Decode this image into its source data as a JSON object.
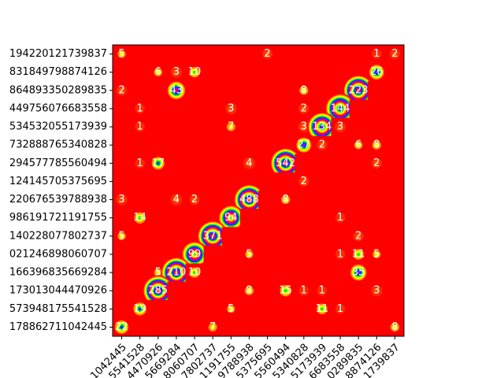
{
  "chart_data": {
    "type": "heatmap",
    "x_categories": [
      "1042445",
      "5541528",
      "4470926",
      "5669284",
      "8060707",
      "7802737",
      "1191755",
      "9788938",
      "5375695",
      "5560494",
      "5340828",
      "5173939",
      "6683558",
      "0289835",
      "8874126",
      "1739837"
    ],
    "y_categories": [
      "194220121739837",
      "831849798874126",
      "864893350289835",
      "449756076683558",
      "534532055173939",
      "732888765340828",
      "294577785560494",
      "124145705375695",
      "220676539788938",
      "986191721191755",
      "140228077802737",
      "021246898060707",
      "166396835669284",
      "173013044470926",
      "573948175541528",
      "178862711042445"
    ],
    "values": [
      [
        5,
        0,
        0,
        0,
        0,
        0,
        0,
        0,
        2,
        0,
        0,
        0,
        0,
        0,
        1,
        2
      ],
      [
        0,
        0,
        6,
        3,
        10,
        0,
        0,
        0,
        0,
        0,
        0,
        0,
        0,
        0,
        26,
        0
      ],
      [
        2,
        0,
        0,
        43,
        0,
        0,
        0,
        0,
        0,
        0,
        8,
        0,
        0,
        223,
        0,
        0
      ],
      [
        0,
        1,
        0,
        0,
        0,
        0,
        3,
        0,
        0,
        0,
        2,
        0,
        144,
        0,
        0,
        0
      ],
      [
        0,
        1,
        0,
        0,
        0,
        0,
        7,
        0,
        0,
        0,
        3,
        134,
        3,
        0,
        0,
        0
      ],
      [
        0,
        0,
        0,
        0,
        0,
        0,
        0,
        0,
        0,
        0,
        27,
        2,
        0,
        6,
        8,
        0
      ],
      [
        0,
        1,
        17,
        0,
        0,
        0,
        0,
        4,
        0,
        542,
        0,
        0,
        0,
        0,
        2,
        0
      ],
      [
        0,
        0,
        0,
        0,
        0,
        0,
        0,
        0,
        0,
        0,
        2,
        0,
        0,
        0,
        0,
        0
      ],
      [
        3,
        0,
        0,
        4,
        2,
        0,
        0,
        488,
        0,
        8,
        0,
        0,
        0,
        0,
        0,
        0
      ],
      [
        0,
        14,
        0,
        0,
        0,
        0,
        94,
        0,
        0,
        0,
        0,
        0,
        1,
        0,
        0,
        0
      ],
      [
        5,
        0,
        0,
        0,
        0,
        371,
        0,
        0,
        0,
        0,
        0,
        0,
        0,
        2,
        0,
        0
      ],
      [
        0,
        0,
        0,
        0,
        99,
        0,
        0,
        5,
        0,
        0,
        0,
        0,
        1,
        11,
        5,
        0
      ],
      [
        0,
        0,
        5,
        210,
        10,
        0,
        0,
        0,
        0,
        0,
        0,
        0,
        0,
        35,
        0,
        0
      ],
      [
        0,
        0,
        285,
        0,
        0,
        0,
        0,
        8,
        0,
        15,
        1,
        1,
        0,
        0,
        3,
        0
      ],
      [
        0,
        19,
        0,
        0,
        0,
        0,
        5,
        0,
        0,
        0,
        0,
        11,
        1,
        0,
        0,
        0
      ],
      [
        22,
        0,
        0,
        0,
        0,
        7,
        0,
        0,
        0,
        0,
        0,
        0,
        0,
        0,
        0,
        8
      ]
    ],
    "hide_zero_labels": true
  }
}
